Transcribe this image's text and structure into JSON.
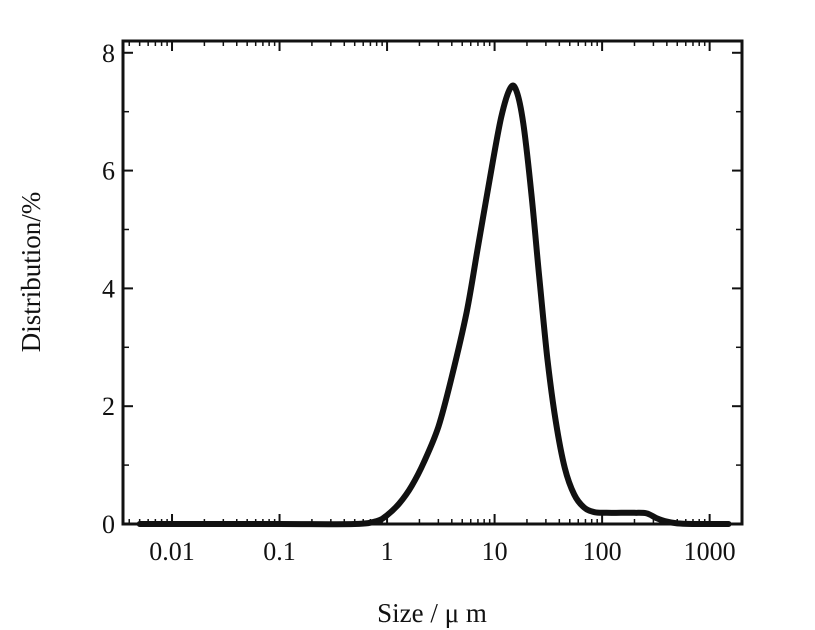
{
  "chart_data": {
    "type": "line",
    "xlabel": "Size / μ m",
    "ylabel": "Distribution/%",
    "x_scale": "log",
    "xlim": [
      0.0035,
      2000
    ],
    "ylim": [
      0,
      8.2
    ],
    "x_ticks": [
      {
        "value": 0.01,
        "label": "0.01"
      },
      {
        "value": 0.1,
        "label": "0.1"
      },
      {
        "value": 1,
        "label": "1"
      },
      {
        "value": 10,
        "label": "10"
      },
      {
        "value": 100,
        "label": "100"
      },
      {
        "value": 1000,
        "label": "1000"
      }
    ],
    "y_ticks": [
      {
        "value": 0,
        "label": "0"
      },
      {
        "value": 2,
        "label": "2"
      },
      {
        "value": 4,
        "label": "4"
      },
      {
        "value": 6,
        "label": "6"
      },
      {
        "value": 8,
        "label": "8"
      }
    ],
    "grid": false,
    "legend": "none",
    "series": [
      {
        "x": [
          0.005,
          0.01,
          0.1,
          0.5,
          0.8,
          1.0,
          1.3,
          1.7,
          2.2,
          3.0,
          4.0,
          5.5,
          7.0,
          9.0,
          11.5,
          14.0,
          16.0,
          18.5,
          22.0,
          26.0,
          31.0,
          37.0,
          45.0,
          55.0,
          68.0,
          85.0,
          110.0,
          150.0,
          200.0,
          260.0,
          320.0,
          400.0,
          500.0,
          700.0,
          1000.0,
          1500.0
        ],
        "y": [
          0,
          0,
          0,
          0,
          0.05,
          0.15,
          0.35,
          0.65,
          1.05,
          1.65,
          2.5,
          3.6,
          4.7,
          5.85,
          6.9,
          7.4,
          7.35,
          6.8,
          5.6,
          4.2,
          2.8,
          1.75,
          0.95,
          0.5,
          0.28,
          0.2,
          0.19,
          0.19,
          0.19,
          0.18,
          0.1,
          0.04,
          0.01,
          0,
          0,
          0
        ]
      }
    ]
  }
}
